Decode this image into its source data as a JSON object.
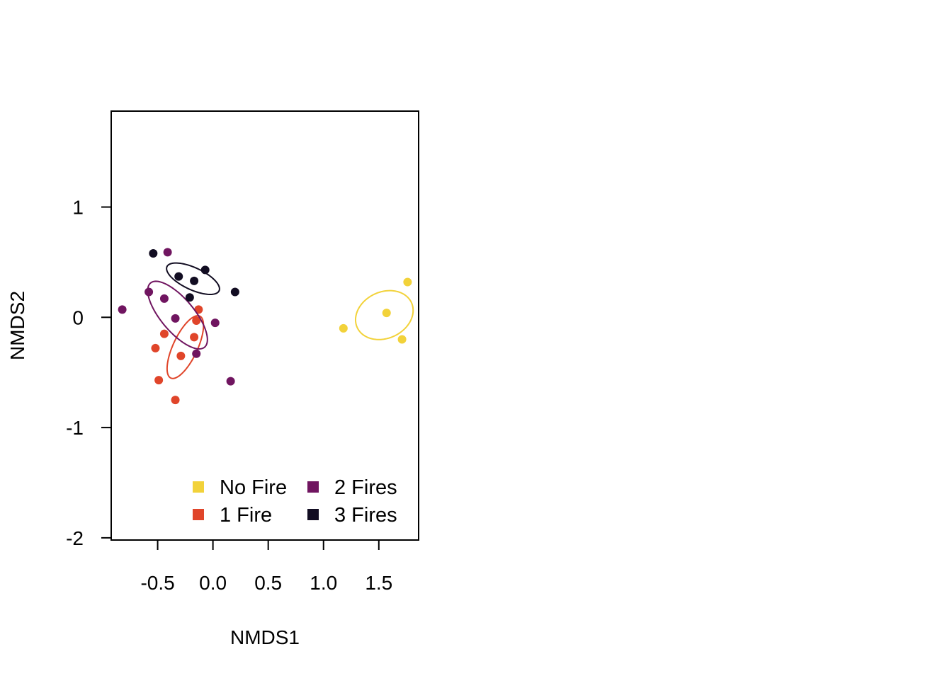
{
  "chart_data": {
    "type": "scatter",
    "title": "",
    "xlabel": "NMDS1",
    "ylabel": "NMDS2",
    "xlim": [
      -0.92,
      1.86
    ],
    "ylim": [
      -2.02,
      1.87
    ],
    "x_ticks": [
      -0.5,
      0.0,
      0.5,
      1.0,
      1.5
    ],
    "x_tick_labels": [
      "-0.5",
      "0.0",
      "0.5",
      "1.0",
      "1.5"
    ],
    "y_ticks": [
      1,
      0,
      -1,
      -2
    ],
    "y_tick_labels": [
      "1",
      "0",
      "-1",
      "-2"
    ],
    "grid": false,
    "legend_position": "bottom-right",
    "series": [
      {
        "name": "No Fire",
        "color": "#F2D23A",
        "points": [
          [
            1.18,
            -0.1
          ],
          [
            1.57,
            0.04
          ],
          [
            1.76,
            0.32
          ],
          [
            1.71,
            -0.2
          ]
        ],
        "ellipse": {
          "cx": 1.55,
          "cy": 0.02,
          "rx": 0.27,
          "ry": 0.21,
          "angle_deg": 25
        }
      },
      {
        "name": "1 Fire",
        "color": "#E0452A",
        "points": [
          [
            -0.13,
            0.07
          ],
          [
            -0.15,
            -0.03
          ],
          [
            -0.44,
            -0.15
          ],
          [
            -0.17,
            -0.18
          ],
          [
            -0.52,
            -0.28
          ],
          [
            -0.29,
            -0.35
          ],
          [
            -0.49,
            -0.57
          ],
          [
            -0.34,
            -0.75
          ]
        ],
        "ellipse": {
          "cx": -0.25,
          "cy": -0.27,
          "rx": 0.31,
          "ry": 0.11,
          "angle_deg": 65
        }
      },
      {
        "name": "2 Fires",
        "color": "#701560",
        "points": [
          [
            -0.41,
            0.59
          ],
          [
            -0.58,
            0.23
          ],
          [
            -0.44,
            0.17
          ],
          [
            -0.82,
            0.07
          ],
          [
            -0.34,
            -0.01
          ],
          [
            0.02,
            -0.05
          ],
          [
            -0.15,
            -0.33
          ],
          [
            0.16,
            -0.58
          ]
        ],
        "ellipse": {
          "cx": -0.32,
          "cy": 0.02,
          "rx": 0.38,
          "ry": 0.15,
          "angle_deg": -50
        }
      },
      {
        "name": "3 Fires",
        "color": "#120D22",
        "points": [
          [
            -0.54,
            0.58
          ],
          [
            -0.31,
            0.37
          ],
          [
            -0.17,
            0.33
          ],
          [
            -0.07,
            0.43
          ],
          [
            0.2,
            0.23
          ],
          [
            -0.21,
            0.18
          ]
        ],
        "ellipse": {
          "cx": -0.18,
          "cy": 0.35,
          "rx": 0.26,
          "ry": 0.1,
          "angle_deg": -25
        }
      }
    ]
  }
}
